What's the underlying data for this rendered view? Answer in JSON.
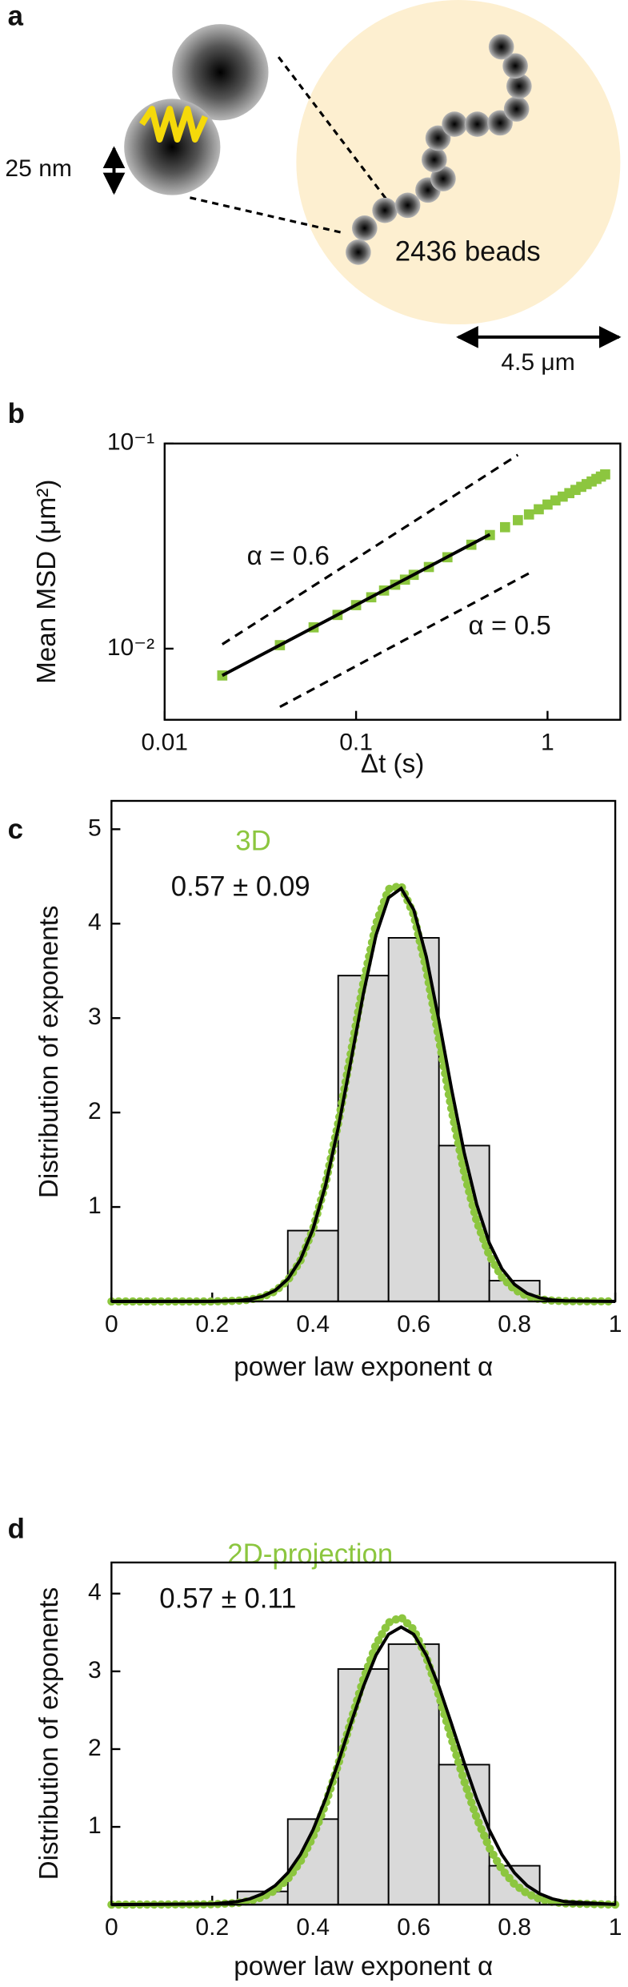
{
  "schematic": {
    "panel": "a",
    "bead_size": "25 nm",
    "bead_count": "2436 beads",
    "scale": "4.5 μm"
  },
  "chart_data": [
    {
      "panel": "b",
      "type": "scatter",
      "xlabel": "Δt (s)",
      "ylabel": "Mean MSD (μm²)",
      "xscale": "log",
      "yscale": "log",
      "xlim": [
        0.01,
        2.4
      ],
      "ylim": [
        0.0045,
        0.1
      ],
      "xticks": [
        0.01,
        0.1,
        1
      ],
      "yticks": [
        {
          "value": 0.1,
          "label": "10⁻¹"
        },
        {
          "value": 0.01,
          "label": "10⁻²"
        }
      ],
      "series": [
        {
          "type": "scatter",
          "color": "#8cc63f",
          "x": [
            0.02,
            0.04,
            0.06,
            0.08,
            0.1,
            0.12,
            0.14,
            0.16,
            0.18,
            0.2,
            0.24,
            0.3,
            0.4,
            0.5,
            0.6,
            0.7,
            0.8,
            0.9,
            1,
            1.1,
            1.2,
            1.3,
            1.4,
            1.5,
            1.6,
            1.7,
            1.8,
            1.9,
            2
          ],
          "values": [
            0.0074,
            0.0104,
            0.0127,
            0.0146,
            0.0163,
            0.0178,
            0.0192,
            0.0205,
            0.0217,
            0.0229,
            0.025,
            0.0279,
            0.0321,
            0.0358,
            0.0391,
            0.0423,
            0.0451,
            0.0478,
            0.0504,
            0.0528,
            0.0551,
            0.0573,
            0.0594,
            0.0615,
            0.0634,
            0.0653,
            0.0672,
            0.069,
            0.0707
          ]
        },
        {
          "type": "line",
          "color": "#000000",
          "x": [
            0.02,
            0.5
          ],
          "values": [
            0.0074,
            0.036
          ]
        }
      ],
      "annotations": [
        {
          "text": "α = 0.6",
          "x": [
            0.02,
            0.7
          ],
          "values": [
            0.0105,
            0.088
          ]
        },
        {
          "text": "α = 0.5",
          "x": [
            0.04,
            0.8
          ],
          "values": [
            0.0052,
            0.0233
          ]
        }
      ]
    },
    {
      "panel": "c",
      "type": "histogram",
      "xlabel": "power law exponent α",
      "ylabel": "Distribution of exponents",
      "xlim": [
        0,
        1
      ],
      "ylim": [
        0,
        5.3
      ],
      "xticks": [
        0,
        0.2,
        0.4,
        0.6,
        0.8,
        1
      ],
      "yticks": [
        1,
        2,
        3,
        4,
        5
      ],
      "bins": [
        0.35,
        0.45,
        0.55,
        0.65,
        0.75,
        0.85
      ],
      "values": [
        0.75,
        3.45,
        3.85,
        1.65,
        0.22
      ],
      "bar_color": "#d9d9d9",
      "curve_x": [
        0,
        0.2,
        0.25,
        0.275,
        0.3,
        0.325,
        0.35,
        0.375,
        0.4,
        0.425,
        0.45,
        0.475,
        0.5,
        0.525,
        0.55,
        0.575,
        0.6,
        0.625,
        0.65,
        0.675,
        0.7,
        0.725,
        0.75,
        0.775,
        0.8,
        0.825,
        0.85,
        0.875,
        0.9,
        1
      ],
      "series": [
        {
          "name": "3D",
          "color": "#8cc63f",
          "style": "dotted",
          "values": [
            0,
            0,
            0.007,
            0.019,
            0.048,
            0.108,
            0.224,
            0.431,
            0.764,
            1.25,
            1.886,
            2.626,
            3.373,
            3.995,
            4.366,
            4.402,
            4.094,
            3.511,
            2.779,
            2.028,
            1.366,
            0.848,
            0.486,
            0.257,
            0.125,
            0.056,
            0.023,
            0.009,
            0.003,
            0
          ]
        },
        {
          "color": "#000000",
          "style": "solid",
          "values": [
            0,
            0.001,
            0.009,
            0.023,
            0.054,
            0.117,
            0.236,
            0.441,
            0.765,
            1.231,
            1.836,
            2.54,
            3.258,
            3.876,
            4.275,
            4.373,
            4.148,
            3.649,
            2.976,
            2.251,
            1.579,
            1.027,
            0.619,
            0.346,
            0.18,
            0.086,
            0.038,
            0.016,
            0.006,
            0
          ]
        }
      ],
      "annotation": "0.57 ± 0.09"
    },
    {
      "panel": "d",
      "type": "histogram",
      "xlabel": "power law exponent α",
      "ylabel": "Distribution of exponents",
      "xlim": [
        0,
        1
      ],
      "ylim": [
        0,
        4.4
      ],
      "xticks": [
        0,
        0.2,
        0.4,
        0.6,
        0.8,
        1
      ],
      "yticks": [
        1,
        2,
        3,
        4
      ],
      "bins": [
        0.25,
        0.35,
        0.45,
        0.55,
        0.65,
        0.75,
        0.85
      ],
      "values": [
        0.17,
        1.1,
        3.03,
        3.35,
        1.8,
        0.5
      ],
      "bar_color": "#d9d9d9",
      "curve_x": [
        0,
        0.2,
        0.25,
        0.275,
        0.3,
        0.325,
        0.35,
        0.375,
        0.4,
        0.425,
        0.45,
        0.475,
        0.5,
        0.525,
        0.55,
        0.575,
        0.6,
        0.625,
        0.65,
        0.675,
        0.7,
        0.725,
        0.75,
        0.775,
        0.8,
        0.825,
        0.85,
        0.875,
        0.9,
        1
      ],
      "series": [
        {
          "name": "2D-projection",
          "color": "#8cc63f",
          "style": "dotted",
          "values": [
            0,
            0.004,
            0.022,
            0.048,
            0.097,
            0.184,
            0.329,
            0.553,
            0.872,
            1.294,
            1.801,
            2.356,
            2.896,
            3.344,
            3.627,
            3.695,
            3.537,
            3.181,
            2.687,
            2.132,
            1.59,
            1.113,
            0.732,
            0.452,
            0.263,
            0.143,
            0.073,
            0.035,
            0.016,
            0
          ]
        },
        {
          "color": "#000000",
          "style": "solid",
          "values": [
            0,
            0.009,
            0.039,
            0.075,
            0.14,
            0.245,
            0.408,
            0.643,
            0.96,
            1.361,
            1.827,
            2.325,
            2.805,
            3.207,
            3.476,
            3.57,
            3.476,
            3.207,
            2.805,
            2.325,
            1.827,
            1.361,
            0.96,
            0.643,
            0.408,
            0.245,
            0.14,
            0.075,
            0.039,
            0.002
          ]
        }
      ],
      "annotation": "0.57 ± 0.11"
    }
  ]
}
